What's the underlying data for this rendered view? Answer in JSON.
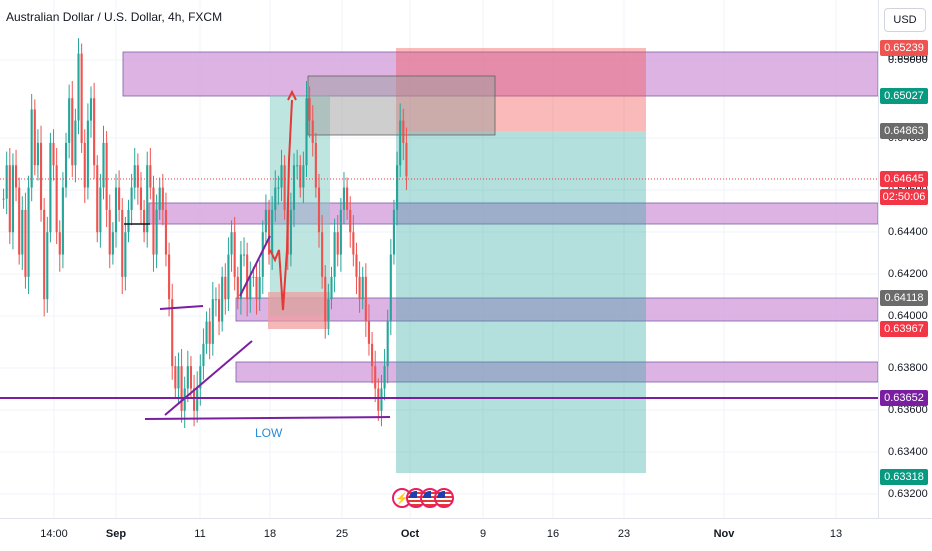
{
  "header": {
    "title": "Australian Dollar / U.S. Dollar, 4h, FXCM",
    "currency": "USD"
  },
  "annotations": {
    "low_label": "LOW"
  },
  "colors": {
    "up": "#26a69a",
    "down": "#ef5350",
    "zone": "#ce93d8",
    "trendline": "#7b1fa2"
  },
  "icons": [
    "lightning-icon",
    "us-flag-icon",
    "us-flag-icon",
    "us-flag-icon"
  ],
  "chart_data": {
    "type": "candlestick",
    "title": "Australian Dollar / U.S. Dollar, 4h, FXCM",
    "y_ticks": [
      "0.65200",
      "0.65000",
      "0.64800",
      "0.64600",
      "0.64400",
      "0.64200",
      "0.64000",
      "0.63800",
      "0.63600",
      "0.63400",
      "0.63200"
    ],
    "x_ticks": [
      "14:00",
      "Sep",
      "11",
      "18",
      "25",
      "Oct",
      "9",
      "16",
      "23",
      "Nov",
      "13"
    ],
    "ylim": [
      0.6312,
      0.6544
    ],
    "price_tags": [
      {
        "value": "0.65239",
        "color": "#ef5350"
      },
      {
        "value": "0.65027",
        "color": "#089981"
      },
      {
        "value": "0.64863",
        "color": "#6b6b6b"
      },
      {
        "value": "0.64645",
        "color": "#f23645"
      },
      {
        "value": "02:50:06",
        "color": "#f23645"
      },
      {
        "value": "0.64118",
        "color": "#6b6b6b"
      },
      {
        "value": "0.63967",
        "color": "#f23645"
      },
      {
        "value": "0.63652",
        "color": "#7b1fa2"
      },
      {
        "value": "0.63318",
        "color": "#089981"
      }
    ],
    "candles_close_path": [
      0.6455,
      0.647,
      0.644,
      0.647,
      0.646,
      0.643,
      0.645,
      0.642,
      0.646,
      0.6495,
      0.647,
      0.648,
      0.645,
      0.641,
      0.644,
      0.648,
      0.647,
      0.644,
      0.643,
      0.646,
      0.648,
      0.65,
      0.647,
      0.649,
      0.652,
      0.648,
      0.646,
      0.649,
      0.65,
      0.647,
      0.644,
      0.646,
      0.648,
      0.645,
      0.643,
      0.644,
      0.646,
      0.645,
      0.642,
      0.644,
      0.645,
      0.646,
      0.647,
      0.646,
      0.645,
      0.644,
      0.647,
      0.646,
      0.643,
      0.645,
      0.646,
      0.645,
      0.643,
      0.641,
      0.638,
      0.637,
      0.638,
      0.636,
      0.637,
      0.638,
      0.637,
      0.636,
      0.637,
      0.638,
      0.639,
      0.64,
      0.639,
      0.641,
      0.641,
      0.64,
      0.642,
      0.641,
      0.643,
      0.644,
      0.642,
      0.641,
      0.643,
      0.643,
      0.641,
      0.642,
      0.642,
      0.641,
      0.642,
      0.644,
      0.645,
      0.643,
      0.645,
      0.646,
      0.646,
      0.647,
      0.645,
      0.643,
      0.645,
      0.647,
      0.647,
      0.646,
      0.647,
      0.65,
      0.649,
      0.648,
      0.646,
      0.644,
      0.642,
      0.64,
      0.641,
      0.642,
      0.644,
      0.643,
      0.645,
      0.646,
      0.645,
      0.644,
      0.643,
      0.642,
      0.641,
      0.642,
      0.64,
      0.639,
      0.638,
      0.637,
      0.636,
      0.637,
      0.638,
      0.64,
      0.643,
      0.645,
      0.647,
      0.649,
      0.648,
      0.6465
    ]
  }
}
